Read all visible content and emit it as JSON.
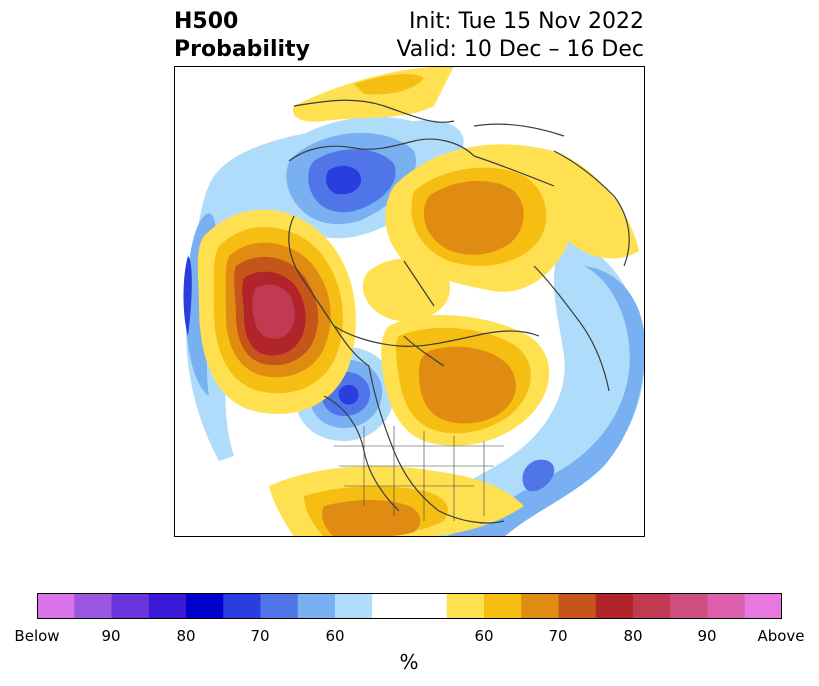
{
  "title": {
    "left_line1": "H500",
    "left_line2": "Probability",
    "right_line1": "Init: Tue 15 Nov 2022",
    "right_line2": "Valid: 10 Dec – 16 Dec"
  },
  "colorbar": {
    "colors": [
      "#d974e8",
      "#9b57e0",
      "#6a35db",
      "#3a1ad6",
      "#0000cc",
      "#2a3ee0",
      "#4f75e8",
      "#78b0f2",
      "#aedcfa",
      "#ffffff",
      "#ffffff",
      "#ffe050",
      "#f6be12",
      "#e08c12",
      "#c55518",
      "#b0242a",
      "#c03a52",
      "#cf4f80",
      "#dc60ac",
      "#e878e0"
    ],
    "tick_labels": [
      "Below",
      "90",
      "80",
      "70",
      "60",
      "60",
      "70",
      "80",
      "90",
      "Above"
    ],
    "unit_label": "%"
  },
  "map": {
    "palette": {
      "blue_light": "#aedcfa",
      "blue_mid": "#78b0f2",
      "blue_strong": "#4f75e8",
      "blue_deep": "#2a3ee0",
      "blue_core": "#0000cc",
      "yellow": "#ffe050",
      "gold": "#f6be12",
      "orange": "#e08c12",
      "rust": "#c55518",
      "red": "#b0242a",
      "crimson": "#c03a52",
      "coast": "#3c3c3c"
    }
  }
}
